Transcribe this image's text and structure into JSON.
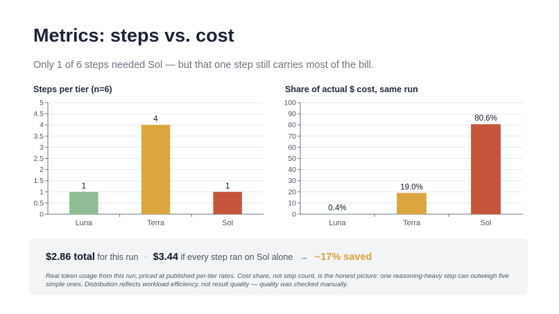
{
  "header": {
    "title": "Metrics: steps vs. cost",
    "subtitle": "Only 1 of 6 steps needed Sol — but that one step still carries most of the bill."
  },
  "chart_data": [
    {
      "type": "bar",
      "title": "Steps per tier (n=6)",
      "categories": [
        "Luna",
        "Terra",
        "Sol"
      ],
      "values": [
        1,
        4,
        1
      ],
      "data_labels": [
        "1",
        "4",
        "1"
      ],
      "colors": [
        "#8fbc94",
        "#dba540",
        "#c4553a"
      ],
      "ylim": [
        0,
        5
      ],
      "yticks": [
        "0",
        "0.5",
        "1",
        "1.5",
        "2",
        "2.5",
        "3",
        "3.5",
        "4",
        "4.5",
        "5"
      ],
      "grid": true
    },
    {
      "type": "bar",
      "title": "Share of actual $ cost, same run",
      "categories": [
        "Luna",
        "Terra",
        "Sol"
      ],
      "values": [
        0.4,
        19.0,
        80.6
      ],
      "data_labels": [
        "0.4%",
        "19.0%",
        "80.6%"
      ],
      "colors": [
        "#8fbc94",
        "#dba540",
        "#c4553a"
      ],
      "ylim": [
        0,
        100
      ],
      "yticks": [
        "0",
        "10",
        "20",
        "30",
        "40",
        "50",
        "60",
        "70",
        "80",
        "90",
        "100"
      ],
      "grid": true
    }
  ],
  "summary": {
    "total": "$2.86 total",
    "total_suffix": "for this run",
    "separator": "·",
    "alt_cost": "$3.44",
    "alt_suffix": "if every step ran on Sol alone",
    "arrow": "→",
    "saved": "~17% saved",
    "note": "Real token usage from this run, priced at published per-tier rates. Cost share, not step count, is the honest picture: one reasoning-heavy step can outweigh five simple ones. Distribution reflects workload efficiency, not result quality — quality was checked manually."
  }
}
